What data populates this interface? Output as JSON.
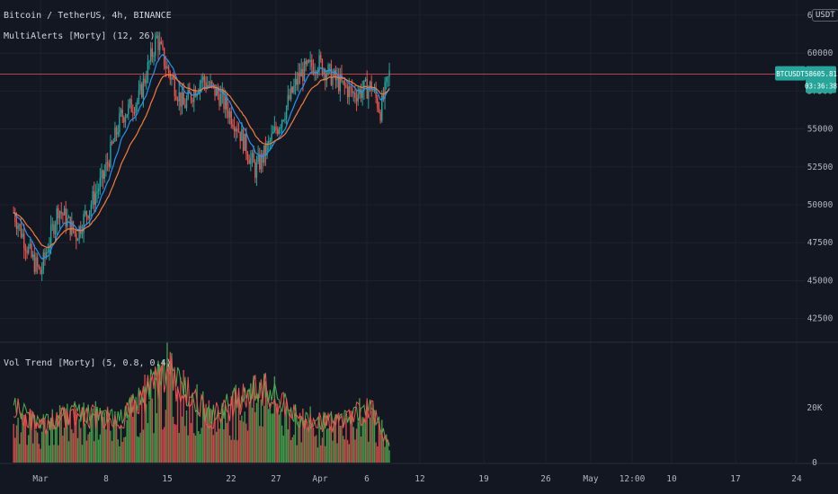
{
  "header": {
    "symbol_title": "Bitcoin / TetherUS, 4h, BINANCE",
    "indicator1": "MultiAlerts [Morty] (12, 26)",
    "indicator2": "Vol Trend [Morty] (5, 0.8, 0.4)",
    "currency_badge": "USDT"
  },
  "price_tag": {
    "symbol": "BTCUSDT",
    "price": "58605.81",
    "countdown": "03:36:38"
  },
  "colors": {
    "background": "#131722",
    "grid": "#1e222d",
    "up": "#26a69a",
    "down": "#ef5350",
    "fast_ma": "#2196f3",
    "slow_ma": "#f57c3b",
    "vol_green": "#4caf50",
    "vol_red": "#ef5350",
    "price_line": "#ef5350"
  },
  "chart_data": [
    {
      "type": "candlestick",
      "title": "Bitcoin / TetherUS, 4h, BINANCE",
      "y_ticks": [
        "62500",
        "60000",
        "57500",
        "55000",
        "52500",
        "50000",
        "47500",
        "45000",
        "42500"
      ],
      "ylim": [
        41000,
        63500
      ],
      "current_price": 58605.81,
      "x_ticks": [
        "Mar",
        "8",
        "15",
        "22",
        "27",
        "Apr",
        "6",
        "12",
        "19",
        "26",
        "May",
        "12:00",
        "10",
        "17",
        "24"
      ],
      "close_anchors": {
        "x": [
          "Feb 26",
          "Feb 28",
          "Mar 1",
          "Mar 3",
          "Mar 5",
          "Mar 8",
          "Mar 10",
          "Mar 12",
          "Mar 14",
          "Mar 15",
          "Mar 17",
          "Mar 19",
          "Mar 21",
          "Mar 23",
          "Mar 25",
          "Mar 26",
          "Mar 28",
          "Mar 30",
          "Apr 1",
          "Apr 3",
          "Apr 5",
          "Apr 7",
          "Apr 8",
          "Apr 9"
        ],
        "y": [
          49500,
          46500,
          45500,
          49800,
          48000,
          51800,
          55800,
          57000,
          61000,
          59200,
          56500,
          58300,
          57200,
          55200,
          52300,
          53300,
          55800,
          58600,
          59400,
          58200,
          57300,
          57800,
          56200,
          58605
        ]
      },
      "series": [
        {
          "name": "MultiAlerts [Morty] fast",
          "period": 12
        },
        {
          "name": "MultiAlerts [Morty] slow",
          "period": 26
        }
      ]
    },
    {
      "type": "bar",
      "title": "Vol Trend [Morty] (5, 0.8, 0.4)",
      "y_ticks": [
        "20K",
        "0"
      ],
      "ylim": [
        0,
        40000
      ],
      "volume_anchors": {
        "x": [
          "Feb 26",
          "Mar 1",
          "Mar 5",
          "Mar 10",
          "Mar 15",
          "Mar 20",
          "Mar 24",
          "Mar 26",
          "Mar 30",
          "Apr 3",
          "Apr 7",
          "Apr 9"
        ],
        "y": [
          18000,
          12000,
          16000,
          14000,
          30000,
          15000,
          22000,
          24000,
          14000,
          13000,
          18000,
          5000
        ]
      }
    }
  ]
}
